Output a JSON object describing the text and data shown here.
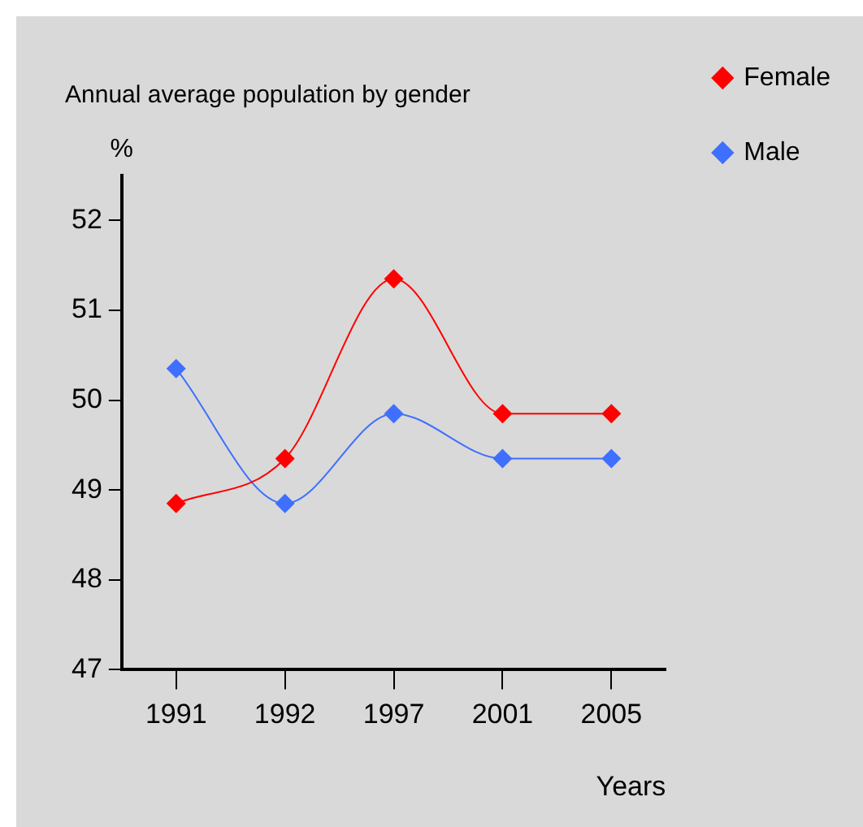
{
  "chart_data": {
    "type": "line",
    "title": "Annual average population by gender",
    "xlabel": "Years",
    "ylabel": "%",
    "categories": [
      "1991",
      "1992",
      "1997",
      "2001",
      "2005"
    ],
    "series": [
      {
        "name": "Female",
        "color": "#ff0000",
        "values": [
          48.85,
          49.35,
          51.35,
          49.85,
          49.85
        ]
      },
      {
        "name": "Male",
        "color": "#3f6fff",
        "values": [
          50.35,
          48.85,
          49.85,
          49.35,
          49.35
        ]
      }
    ],
    "ylim": [
      47,
      52.5
    ],
    "yticks": [
      47,
      48,
      49,
      50,
      51,
      52
    ],
    "grid": false,
    "legend": "top right",
    "marker": "diamond",
    "line_style": "solid"
  }
}
